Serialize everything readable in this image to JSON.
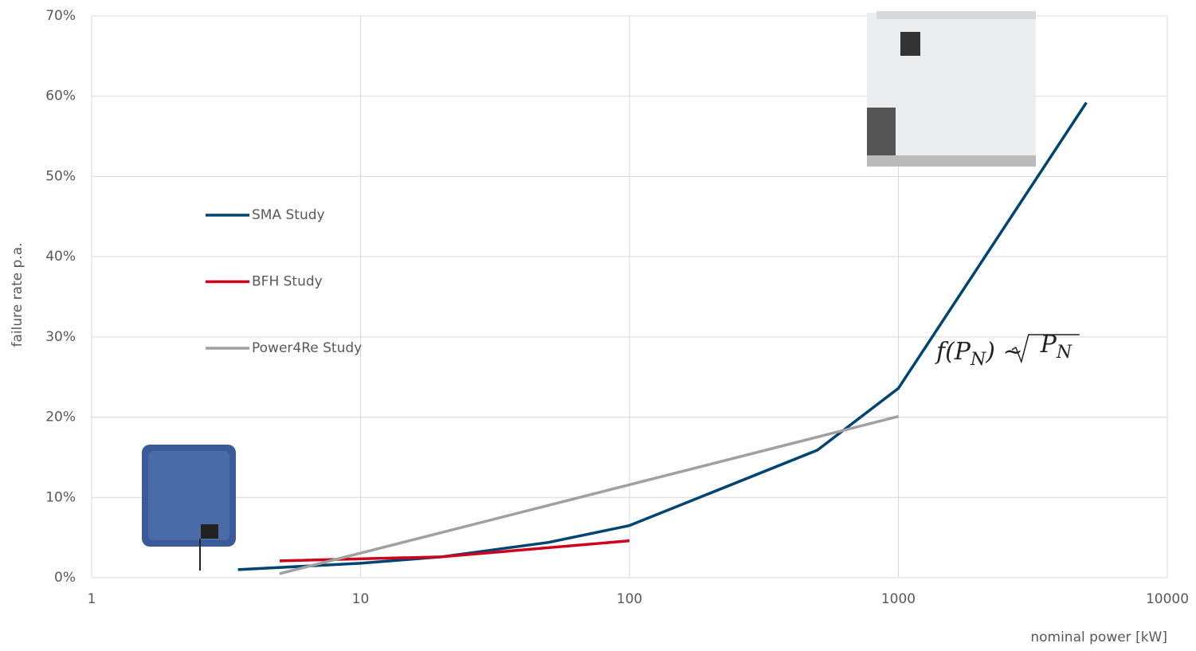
{
  "chart_data": {
    "type": "line",
    "x_label": "nominal power [kW]",
    "y_label": "failure rate p.a.",
    "log_x": true,
    "grid": true,
    "legend": "left",
    "xlim": [
      1,
      10000
    ],
    "xticks": [
      1,
      10,
      100,
      1000,
      10000
    ],
    "ylim": [
      0,
      70
    ],
    "yticks": [
      {
        "value": 0,
        "label": "0%"
      },
      {
        "value": 10,
        "label": "10%"
      },
      {
        "value": 20,
        "label": "20%"
      },
      {
        "value": 30,
        "label": "30%"
      },
      {
        "value": 40,
        "label": "40%"
      },
      {
        "value": 50,
        "label": "50%"
      },
      {
        "value": 60,
        "label": "60%"
      },
      {
        "value": 70,
        "label": "70%"
      }
    ],
    "series": [
      {
        "name": "SMA Study",
        "color": "#004474",
        "x": [
          3.5,
          10,
          20,
          50,
          100,
          500,
          1000,
          5000
        ],
        "values": [
          1,
          1.8,
          2.6,
          4.4,
          6.5,
          15.9,
          23.6,
          59.2
        ]
      },
      {
        "name": "BFH Study",
        "color": "#d0021b",
        "x": [
          5,
          20,
          100
        ],
        "values": [
          2.1,
          2.6,
          4.6
        ]
      },
      {
        "name": "Power4Re Study",
        "color": "#a0a0a0",
        "x": [
          5,
          1000
        ],
        "values": [
          0.5,
          20.1
        ]
      }
    ],
    "annotation": [
      "f(P",
      "N",
      ") ~",
      "P",
      "N"
    ]
  }
}
